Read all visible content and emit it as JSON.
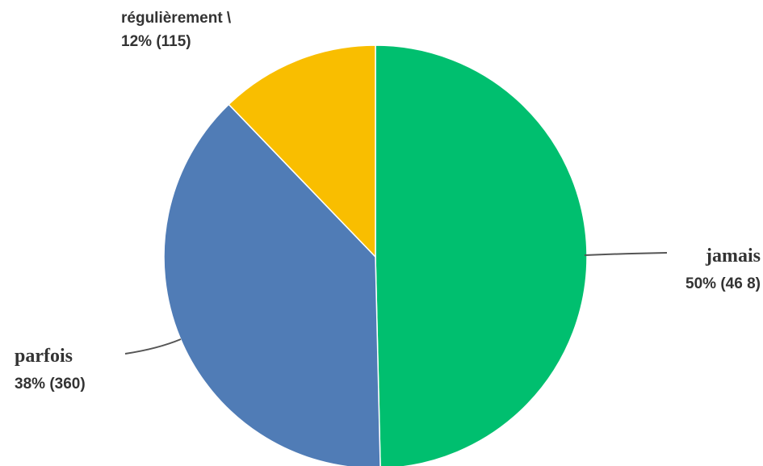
{
  "chart_data": {
    "type": "pie",
    "title": "",
    "slices": [
      {
        "name": "jamais",
        "percent_label": "50%",
        "count_label": "(46 8)",
        "value": 468,
        "color": "#00BF6F"
      },
      {
        "name": "parfois",
        "percent_label": "38%",
        "count_label": "(360)",
        "value": 360,
        "color": "#507CB6"
      },
      {
        "name": "régulièrement \\",
        "percent_label": "12%",
        "count_label": "(115)",
        "value": 115,
        "color": "#F9BE00"
      }
    ],
    "start_angle_deg": 0,
    "direction": "clockwise",
    "legend": "none"
  }
}
